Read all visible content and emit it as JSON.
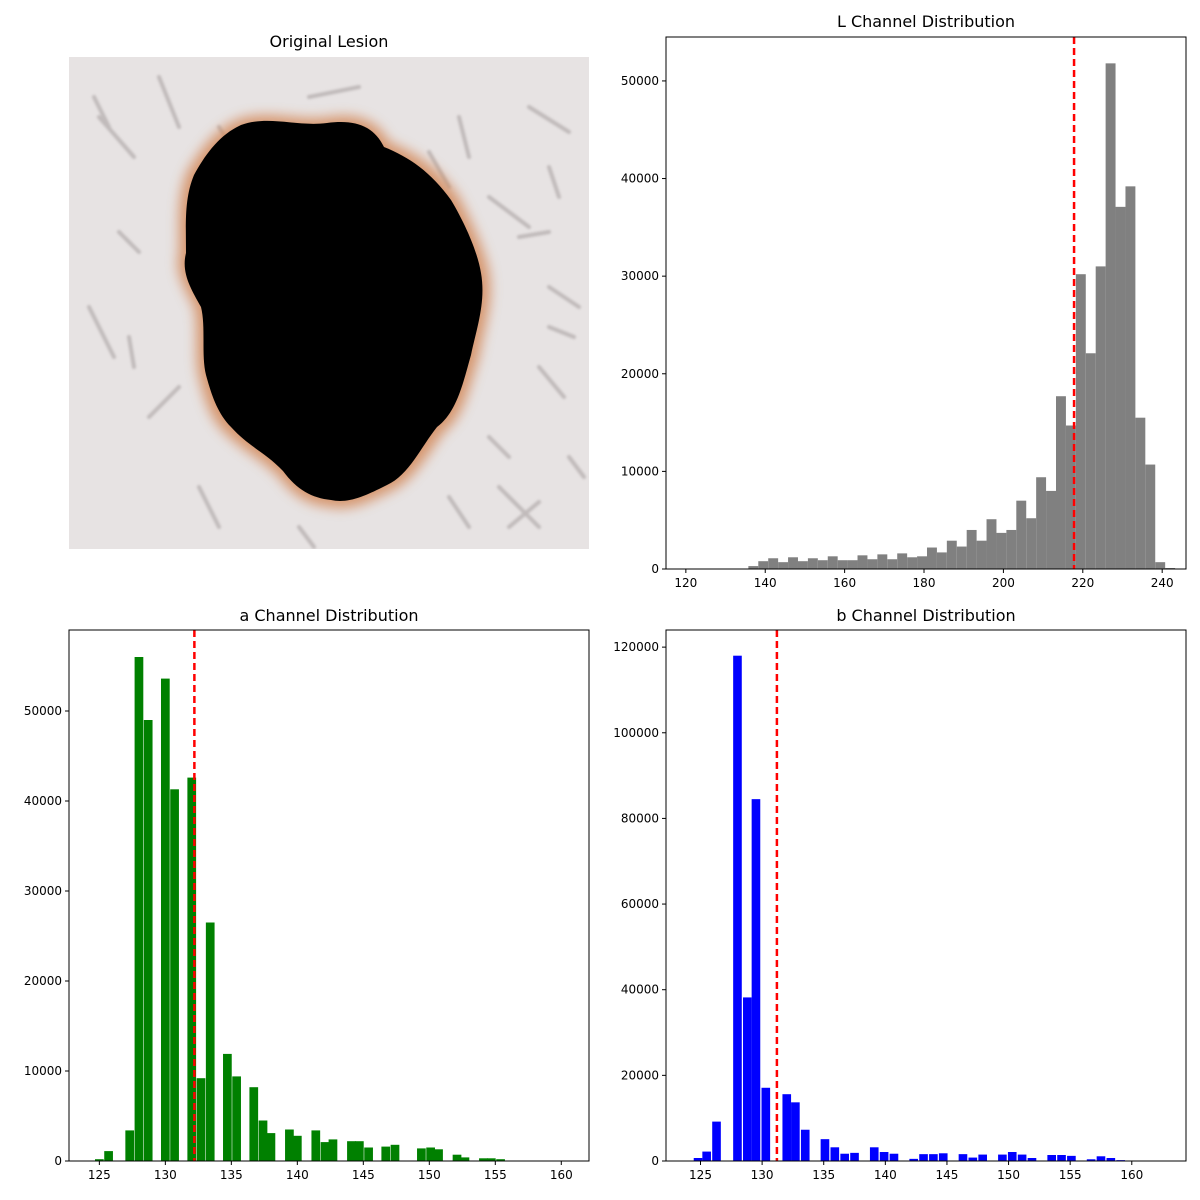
{
  "image_panel": {
    "title": "Original Lesion",
    "colors": {
      "skin": "#e8e4e4",
      "lesion": "#000000",
      "rim": "#d9875a",
      "hair": "#9a9494"
    }
  },
  "chart_data": [
    {
      "type": "bar",
      "title": "L Channel Distribution",
      "xlabel": "",
      "ylabel": "",
      "xlim": [
        115,
        246
      ],
      "ylim": [
        0,
        54500
      ],
      "xticks": [
        120,
        140,
        160,
        180,
        200,
        220,
        240
      ],
      "yticks": [
        0,
        10000,
        20000,
        30000,
        40000,
        50000
      ],
      "bin_width": 2.5,
      "color": "#808080",
      "bins": [
        {
          "x": 137,
          "v": 300
        },
        {
          "x": 139.5,
          "v": 800
        },
        {
          "x": 142,
          "v": 1100
        },
        {
          "x": 144.5,
          "v": 700
        },
        {
          "x": 147,
          "v": 1200
        },
        {
          "x": 149.5,
          "v": 800
        },
        {
          "x": 152,
          "v": 1100
        },
        {
          "x": 154.5,
          "v": 900
        },
        {
          "x": 157,
          "v": 1300
        },
        {
          "x": 159.5,
          "v": 900
        },
        {
          "x": 162,
          "v": 900
        },
        {
          "x": 164.5,
          "v": 1400
        },
        {
          "x": 167,
          "v": 1000
        },
        {
          "x": 169.5,
          "v": 1500
        },
        {
          "x": 172,
          "v": 1000
        },
        {
          "x": 174.5,
          "v": 1600
        },
        {
          "x": 177,
          "v": 1200
        },
        {
          "x": 179.5,
          "v": 1300
        },
        {
          "x": 182,
          "v": 2200
        },
        {
          "x": 184.5,
          "v": 1700
        },
        {
          "x": 187,
          "v": 2900
        },
        {
          "x": 189.5,
          "v": 2300
        },
        {
          "x": 192,
          "v": 4000
        },
        {
          "x": 194.5,
          "v": 2900
        },
        {
          "x": 197,
          "v": 5100
        },
        {
          "x": 199.5,
          "v": 3700
        },
        {
          "x": 202,
          "v": 4000
        },
        {
          "x": 204.5,
          "v": 7000
        },
        {
          "x": 207,
          "v": 5200
        },
        {
          "x": 209.5,
          "v": 9400
        },
        {
          "x": 212,
          "v": 8000
        },
        {
          "x": 214.5,
          "v": 17700
        },
        {
          "x": 217,
          "v": 14700
        },
        {
          "x": 219.5,
          "v": 30200
        },
        {
          "x": 222,
          "v": 22100
        },
        {
          "x": 224.5,
          "v": 31000
        },
        {
          "x": 227,
          "v": 51800
        },
        {
          "x": 229.5,
          "v": 37100
        },
        {
          "x": 232,
          "v": 39200
        },
        {
          "x": 234.5,
          "v": 15500
        },
        {
          "x": 237,
          "v": 10700
        },
        {
          "x": 239.5,
          "v": 700
        },
        {
          "x": 242,
          "v": 100
        }
      ],
      "mean_line": 217.8,
      "mean_line_color": "#ff0000"
    },
    {
      "type": "bar",
      "title": "a Channel Distribution",
      "xlabel": "",
      "ylabel": "",
      "xlim": [
        122.7,
        162.1
      ],
      "ylim": [
        0,
        59000
      ],
      "xticks": [
        125,
        130,
        135,
        140,
        145,
        150,
        155,
        160
      ],
      "yticks": [
        0,
        10000,
        20000,
        30000,
        40000,
        50000
      ],
      "bin_width": 0.66,
      "color": "#008000",
      "bins": [
        {
          "x": 125,
          "v": 200
        },
        {
          "x": 125.7,
          "v": 1100
        },
        {
          "x": 127.3,
          "v": 3400
        },
        {
          "x": 128,
          "v": 56000
        },
        {
          "x": 128.7,
          "v": 49000
        },
        {
          "x": 130,
          "v": 53600
        },
        {
          "x": 130.7,
          "v": 41300
        },
        {
          "x": 132,
          "v": 42600
        },
        {
          "x": 132.7,
          "v": 9200
        },
        {
          "x": 133.4,
          "v": 26500
        },
        {
          "x": 134.7,
          "v": 11900
        },
        {
          "x": 135.4,
          "v": 9400
        },
        {
          "x": 136.7,
          "v": 8200
        },
        {
          "x": 137.4,
          "v": 4500
        },
        {
          "x": 138,
          "v": 3100
        },
        {
          "x": 139.4,
          "v": 3500
        },
        {
          "x": 140,
          "v": 2800
        },
        {
          "x": 141.4,
          "v": 3400
        },
        {
          "x": 142.1,
          "v": 2100
        },
        {
          "x": 142.7,
          "v": 2400
        },
        {
          "x": 144.1,
          "v": 2200
        },
        {
          "x": 144.7,
          "v": 2200
        },
        {
          "x": 145.4,
          "v": 1500
        },
        {
          "x": 146.7,
          "v": 1600
        },
        {
          "x": 147.4,
          "v": 1800
        },
        {
          "x": 149.4,
          "v": 1400
        },
        {
          "x": 150.1,
          "v": 1500
        },
        {
          "x": 150.7,
          "v": 1300
        },
        {
          "x": 152.1,
          "v": 700
        },
        {
          "x": 152.7,
          "v": 400
        },
        {
          "x": 154.1,
          "v": 300
        },
        {
          "x": 154.7,
          "v": 300
        },
        {
          "x": 155.4,
          "v": 200
        }
      ],
      "mean_line": 132.2,
      "mean_line_color": "#ff0000"
    },
    {
      "type": "bar",
      "title": "b Channel Distribution",
      "xlabel": "",
      "ylabel": "",
      "xlim": [
        122.2,
        164.4
      ],
      "ylim": [
        0,
        124000
      ],
      "xticks": [
        125,
        130,
        135,
        140,
        145,
        150,
        155,
        160
      ],
      "yticks": [
        0,
        20000,
        40000,
        60000,
        80000,
        100000,
        120000
      ],
      "bin_width": 0.7,
      "color": "#0000ff",
      "bins": [
        {
          "x": 124.8,
          "v": 700
        },
        {
          "x": 125.5,
          "v": 2200
        },
        {
          "x": 126.3,
          "v": 9200
        },
        {
          "x": 128,
          "v": 118000
        },
        {
          "x": 128.8,
          "v": 38200
        },
        {
          "x": 129.5,
          "v": 84500
        },
        {
          "x": 130.3,
          "v": 17100
        },
        {
          "x": 132,
          "v": 15600
        },
        {
          "x": 132.7,
          "v": 13700
        },
        {
          "x": 133.5,
          "v": 7300
        },
        {
          "x": 135.1,
          "v": 5100
        },
        {
          "x": 135.9,
          "v": 3200
        },
        {
          "x": 136.7,
          "v": 1700
        },
        {
          "x": 137.5,
          "v": 1900
        },
        {
          "x": 139.1,
          "v": 3200
        },
        {
          "x": 139.9,
          "v": 2100
        },
        {
          "x": 140.7,
          "v": 1700
        },
        {
          "x": 142.3,
          "v": 500
        },
        {
          "x": 143.1,
          "v": 1600
        },
        {
          "x": 143.9,
          "v": 1600
        },
        {
          "x": 144.7,
          "v": 1800
        },
        {
          "x": 146.3,
          "v": 1600
        },
        {
          "x": 147.1,
          "v": 800
        },
        {
          "x": 147.9,
          "v": 1500
        },
        {
          "x": 149.5,
          "v": 1500
        },
        {
          "x": 150.3,
          "v": 2100
        },
        {
          "x": 151.1,
          "v": 1500
        },
        {
          "x": 151.9,
          "v": 700
        },
        {
          "x": 153.5,
          "v": 1400
        },
        {
          "x": 154.3,
          "v": 1400
        },
        {
          "x": 155.1,
          "v": 1200
        },
        {
          "x": 156.7,
          "v": 400
        },
        {
          "x": 157.5,
          "v": 1100
        },
        {
          "x": 158.3,
          "v": 700
        },
        {
          "x": 159.1,
          "v": 200
        }
      ],
      "mean_line": 131.2,
      "mean_line_color": "#ff0000"
    }
  ]
}
